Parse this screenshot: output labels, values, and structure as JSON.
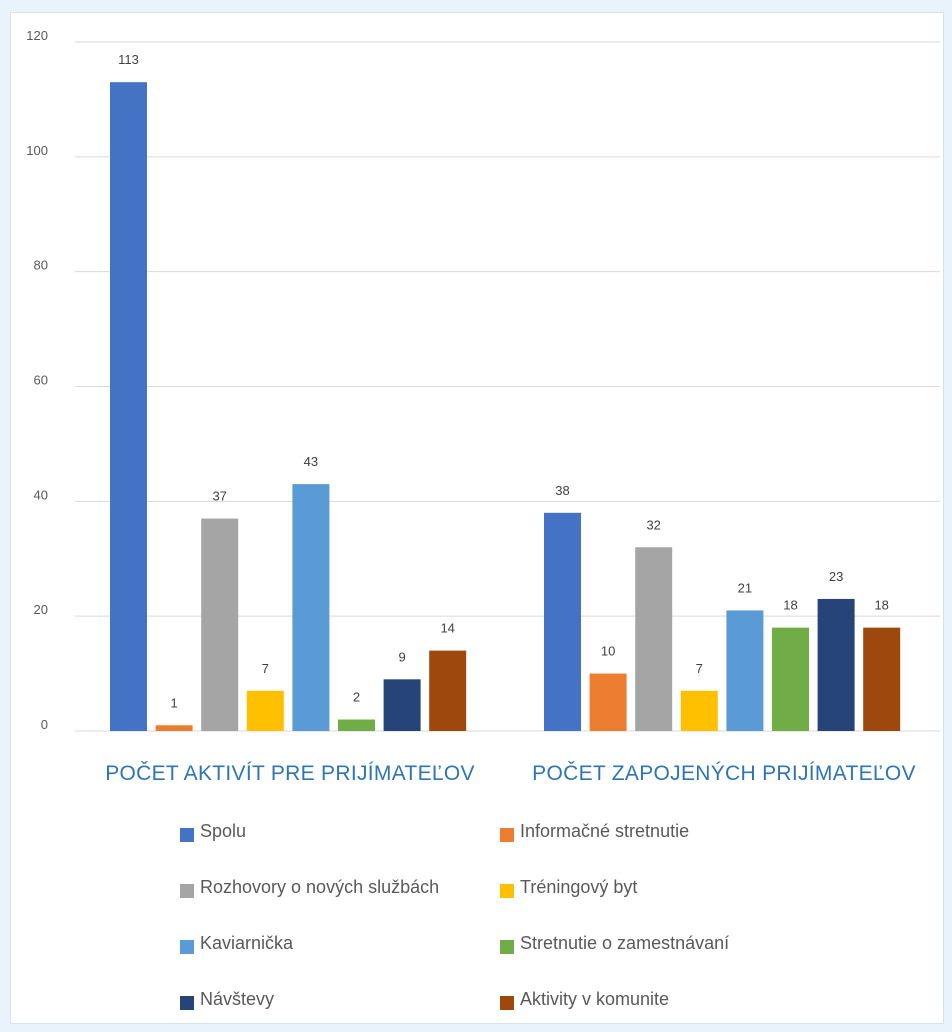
{
  "chart_data": {
    "type": "bar",
    "categories": [
      "POČET AKTIVÍT PRE PRIJÍMATEĽOV",
      "POČET ZAPOJENÝCH PRIJÍMATEĽOV"
    ],
    "ylim": [
      0,
      120
    ],
    "yticks": [
      "0",
      "20",
      "40",
      "60",
      "80",
      "100",
      "120"
    ],
    "grid": true,
    "legend_position": "bottom",
    "series": [
      {
        "name": "Spolu",
        "color": "#4472c4",
        "values": [
          113,
          38
        ]
      },
      {
        "name": "Informačné stretnutie",
        "color": "#ed7d31",
        "values": [
          1,
          10
        ]
      },
      {
        "name": "Rozhovory o nových službách",
        "color": "#a5a5a5",
        "values": [
          37,
          32
        ]
      },
      {
        "name": "Tréningový byt",
        "color": "#ffc000",
        "values": [
          7,
          7
        ]
      },
      {
        "name": "Kaviarnička",
        "color": "#5b9bd5",
        "values": [
          43,
          21
        ]
      },
      {
        "name": "Stretnutie o zamestnávaní",
        "color": "#70ad47",
        "values": [
          2,
          18
        ]
      },
      {
        "name": "Návštevy",
        "color": "#264478",
        "values": [
          9,
          23
        ]
      },
      {
        "name": "Aktivity v komunite",
        "color": "#9e480e",
        "values": [
          14,
          18
        ]
      }
    ]
  }
}
